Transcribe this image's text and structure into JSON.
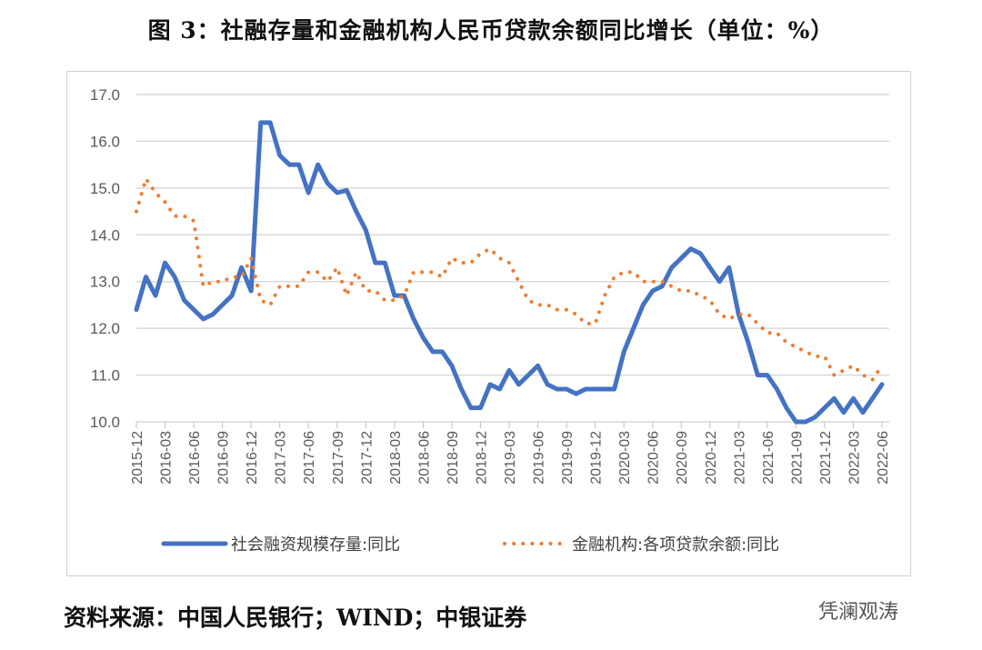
{
  "title": "图 3：社融存量和金融机构人民币贷款余额同比增长（单位：%）",
  "source": "资料来源：中国人民银行；WIND；中银证券",
  "watermark": "凭澜观涛",
  "chart_data": {
    "type": "line",
    "title": "图 3：社融存量和金融机构人民币贷款余额同比增长（单位：%）",
    "ylim": [
      10,
      17
    ],
    "yticks": [
      "10.0",
      "11.0",
      "12.0",
      "13.0",
      "14.0",
      "15.0",
      "16.0",
      "17.0"
    ],
    "grid": true,
    "legend_placement": "bottom",
    "start": "2015-12",
    "xticks": [
      "2015-12",
      "2016-03",
      "2016-06",
      "2016-09",
      "2016-12",
      "2017-03",
      "2017-06",
      "2017-09",
      "2017-12",
      "2018-03",
      "2018-06",
      "2018-09",
      "2018-12",
      "2019-03",
      "2019-06",
      "2019-09",
      "2019-12",
      "2020-03",
      "2020-06",
      "2020-09",
      "2020-12",
      "2021-03",
      "2021-06",
      "2021-09",
      "2021-12",
      "2022-03",
      "2022-06"
    ],
    "series": [
      {
        "name": "社会融资规模存量:同比",
        "color": "#4472C4",
        "style": "solid",
        "values": [
          12.4,
          13.1,
          12.7,
          13.4,
          13.1,
          12.6,
          12.4,
          12.2,
          12.3,
          12.5,
          12.7,
          13.3,
          12.8,
          16.4,
          16.4,
          15.7,
          15.5,
          15.5,
          14.9,
          15.5,
          15.1,
          14.9,
          14.95,
          14.5,
          14.1,
          13.4,
          13.4,
          12.7,
          12.7,
          12.2,
          11.8,
          11.5,
          11.5,
          11.2,
          10.7,
          10.3,
          10.3,
          10.8,
          10.7,
          11.1,
          10.8,
          11.0,
          11.2,
          10.8,
          10.7,
          10.7,
          10.6,
          10.7,
          10.7,
          10.7,
          10.7,
          11.5,
          12.0,
          12.5,
          12.8,
          12.9,
          13.3,
          13.5,
          13.7,
          13.6,
          13.3,
          13.0,
          13.3,
          12.3,
          11.7,
          11.0,
          11.0,
          10.7,
          10.3,
          10.0,
          10.0,
          10.1,
          10.3,
          10.5,
          10.2,
          10.5,
          10.2,
          10.5,
          10.8
        ]
      },
      {
        "name": "金融机构:各项贷款余额:同比",
        "color": "#ED7D31",
        "style": "dotted",
        "values": [
          14.5,
          15.2,
          14.9,
          14.7,
          14.4,
          14.4,
          14.3,
          12.9,
          13.0,
          13.0,
          13.1,
          13.1,
          13.5,
          12.6,
          12.5,
          12.9,
          12.9,
          12.9,
          13.2,
          13.2,
          13.0,
          13.3,
          12.7,
          13.2,
          12.8,
          12.8,
          12.6,
          12.6,
          12.7,
          13.2,
          13.2,
          13.2,
          13.1,
          13.5,
          13.4,
          13.4,
          13.6,
          13.7,
          13.5,
          13.4,
          13.0,
          12.6,
          12.5,
          12.5,
          12.4,
          12.4,
          12.3,
          12.1,
          12.1,
          12.7,
          13.1,
          13.2,
          13.2,
          13.0,
          13.0,
          13.0,
          12.9,
          12.8,
          12.8,
          12.7,
          12.6,
          12.3,
          12.2,
          12.3,
          12.3,
          12.1,
          11.9,
          11.9,
          11.7,
          11.6,
          11.5,
          11.4,
          11.4,
          11.0,
          11.1,
          11.2,
          11.0,
          10.9,
          11.2
        ]
      }
    ]
  }
}
